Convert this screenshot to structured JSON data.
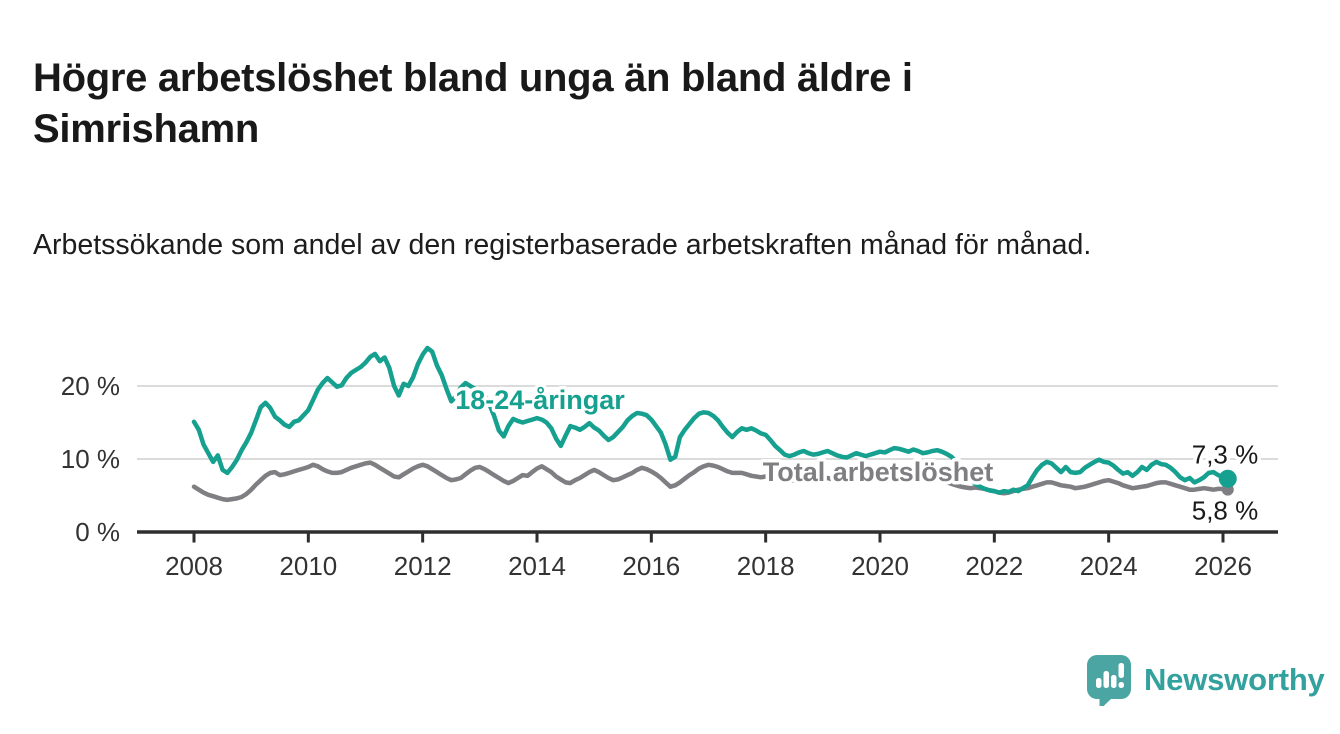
{
  "title": "Högre arbetslöshet bland unga än bland äldre i Simrishamn",
  "subtitle": "Arbetssökande som andel av den registerbaserade arbetskraften månad för månad.",
  "branding": {
    "logo_text": "Newsworthy",
    "logo_icon": "bar-chart-speech-bubble-icon",
    "brand_color": "#33a19d"
  },
  "chart_data": {
    "type": "line",
    "x_unit": "year (monthly data)",
    "x_start": 2008.0,
    "x_step_years": 0.083333,
    "xlim": [
      2007.0,
      2027.0
    ],
    "ylim": [
      0,
      27
    ],
    "grid": true,
    "xticks": [
      2008,
      2010,
      2012,
      2014,
      2016,
      2018,
      2020,
      2022,
      2024,
      2026
    ],
    "yticks": [
      {
        "v": 0,
        "label": "0 %"
      },
      {
        "v": 10,
        "label": "10 %"
      },
      {
        "v": 20,
        "label": "20 %"
      }
    ],
    "series": [
      {
        "name": "18-24-åringar",
        "color": "#16a08f",
        "end_label": "7,3 %",
        "last_value": 7.3,
        "values": [
          15.1,
          14.0,
          12.0,
          10.8,
          9.6,
          10.5,
          8.5,
          8.1,
          8.9,
          9.9,
          11.2,
          12.3,
          13.6,
          15.3,
          17.1,
          17.7,
          17.0,
          15.8,
          15.3,
          14.7,
          14.4,
          15.1,
          15.3,
          16.0,
          16.7,
          18.1,
          19.5,
          20.4,
          21.1,
          20.5,
          19.9,
          20.1,
          21.1,
          21.8,
          22.2,
          22.6,
          23.2,
          24.0,
          24.4,
          23.4,
          23.9,
          22.5,
          20.0,
          18.7,
          20.3,
          20.0,
          21.2,
          23.0,
          24.3,
          25.2,
          24.7,
          22.8,
          21.5,
          19.6,
          17.9,
          18.6,
          19.8,
          20.4,
          20.0,
          19.6,
          19.2,
          18.8,
          17.5,
          15.9,
          13.9,
          13.1,
          14.5,
          15.5,
          15.2,
          15.0,
          15.2,
          15.4,
          15.6,
          15.4,
          15.0,
          14.2,
          12.8,
          11.8,
          13.2,
          14.5,
          14.3,
          14.0,
          14.4,
          14.9,
          14.3,
          13.9,
          13.2,
          12.6,
          13.0,
          13.7,
          14.4,
          15.3,
          15.9,
          16.3,
          16.2,
          16.0,
          15.4,
          14.5,
          13.6,
          12.0,
          9.9,
          10.3,
          13.0,
          14.0,
          14.8,
          15.6,
          16.2,
          16.4,
          16.3,
          15.9,
          15.3,
          14.4,
          13.6,
          13.0,
          13.7,
          14.2,
          14.0,
          14.2,
          13.9,
          13.5,
          13.3,
          12.6,
          11.8,
          11.2,
          10.6,
          10.4,
          10.6,
          10.9,
          11.1,
          10.8,
          10.6,
          10.7,
          10.9,
          11.1,
          10.8,
          10.5,
          10.3,
          10.2,
          10.5,
          10.8,
          10.6,
          10.4,
          10.6,
          10.8,
          11.0,
          10.9,
          11.2,
          11.5,
          11.4,
          11.2,
          11.0,
          11.3,
          11.1,
          10.8,
          10.9,
          11.1,
          11.2,
          11.0,
          10.7,
          10.3,
          9.6,
          8.8,
          8.0,
          7.2,
          6.6,
          6.2,
          5.9,
          5.7,
          5.6,
          5.4,
          5.6,
          5.5,
          5.8,
          5.6,
          6.0,
          6.4,
          7.5,
          8.5,
          9.2,
          9.6,
          9.4,
          8.8,
          8.2,
          8.9,
          8.2,
          8.1,
          8.2,
          8.8,
          9.2,
          9.6,
          9.9,
          9.6,
          9.5,
          9.1,
          8.5,
          8.0,
          8.2,
          7.7,
          8.2,
          8.9,
          8.5,
          9.2,
          9.6,
          9.3,
          9.2,
          8.8,
          8.2,
          7.5,
          7.1,
          7.4,
          6.8,
          7.1,
          7.5,
          8.1,
          8.2,
          7.8,
          7.5,
          7.3
        ]
      },
      {
        "name": "Total arbetslöshet",
        "color": "#7f7f83",
        "end_label": "5,8 %",
        "last_value": 5.8,
        "values": [
          6.2,
          5.8,
          5.4,
          5.1,
          4.9,
          4.7,
          4.5,
          4.4,
          4.5,
          4.6,
          4.8,
          5.2,
          5.8,
          6.5,
          7.1,
          7.7,
          8.1,
          8.2,
          7.8,
          7.9,
          8.1,
          8.3,
          8.5,
          8.7,
          8.9,
          9.2,
          9.0,
          8.6,
          8.3,
          8.1,
          8.1,
          8.2,
          8.5,
          8.8,
          9.0,
          9.2,
          9.4,
          9.5,
          9.2,
          8.8,
          8.4,
          8.0,
          7.6,
          7.5,
          7.9,
          8.3,
          8.7,
          9.0,
          9.2,
          9.0,
          8.6,
          8.2,
          7.8,
          7.4,
          7.1,
          7.2,
          7.4,
          7.9,
          8.4,
          8.8,
          8.9,
          8.6,
          8.2,
          7.8,
          7.4,
          7.0,
          6.7,
          7.0,
          7.4,
          7.8,
          7.7,
          8.2,
          8.7,
          9.0,
          8.6,
          8.2,
          7.6,
          7.2,
          6.8,
          6.7,
          7.1,
          7.4,
          7.8,
          8.2,
          8.5,
          8.2,
          7.8,
          7.4,
          7.1,
          7.2,
          7.5,
          7.8,
          8.1,
          8.5,
          8.8,
          8.6,
          8.3,
          7.9,
          7.4,
          6.8,
          6.2,
          6.4,
          6.8,
          7.3,
          7.8,
          8.2,
          8.7,
          9.0,
          9.2,
          9.1,
          8.9,
          8.6,
          8.3,
          8.1,
          8.1,
          8.1,
          7.9,
          7.7,
          7.6,
          7.5,
          7.6,
          7.7,
          7.5,
          7.3,
          7.1,
          7.0,
          7.1,
          7.2,
          7.1,
          7.0,
          7.1,
          7.2,
          7.3,
          7.4,
          7.2,
          7.0,
          6.9,
          7.0,
          7.2,
          7.3,
          7.2,
          7.1,
          7.2,
          7.4,
          7.5,
          7.6,
          7.9,
          8.3,
          8.5,
          8.4,
          8.2,
          8.0,
          7.8,
          7.6,
          7.4,
          7.3,
          7.2,
          7.0,
          6.8,
          6.6,
          6.4,
          6.2,
          6.1,
          6.0,
          6.1,
          6.0,
          5.9,
          5.7,
          5.6,
          5.4,
          5.3,
          5.4,
          5.6,
          5.8,
          5.9,
          6.0,
          6.2,
          6.4,
          6.6,
          6.8,
          6.8,
          6.6,
          6.4,
          6.3,
          6.2,
          6.0,
          6.1,
          6.2,
          6.4,
          6.6,
          6.8,
          7.0,
          7.1,
          6.9,
          6.7,
          6.4,
          6.2,
          6.0,
          6.1,
          6.2,
          6.3,
          6.5,
          6.7,
          6.8,
          6.8,
          6.6,
          6.4,
          6.2,
          6.0,
          5.8,
          5.8,
          5.9,
          6.0,
          5.9,
          5.8,
          5.9,
          5.9,
          5.8
        ]
      }
    ]
  }
}
